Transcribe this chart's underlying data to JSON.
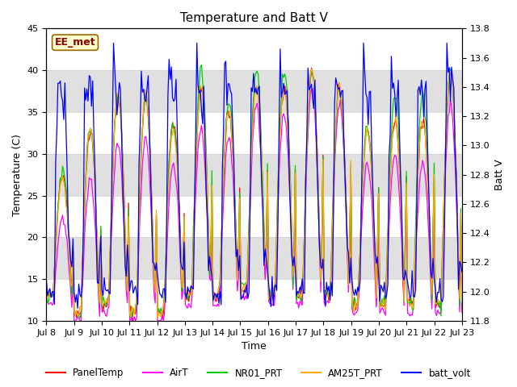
{
  "title": "Temperature and Batt V",
  "xlabel": "Time",
  "ylabel_left": "Temperature (C)",
  "ylabel_right": "Batt V",
  "ylim_left": [
    10,
    45
  ],
  "ylim_right": [
    11.8,
    13.8
  ],
  "x_tick_labels": [
    "Jul 8",
    "Jul 9",
    "Jul 10",
    "Jul 11",
    "Jul 12",
    "Jul 13",
    "Jul 14",
    "Jul 15",
    "Jul 16",
    "Jul 17",
    "Jul 18",
    "Jul 19",
    "Jul 20",
    "Jul 21",
    "Jul 22",
    "Jul 23"
  ],
  "annotation_text": "EE_met",
  "series_colors": {
    "PanelTemp": "#ff0000",
    "AirT": "#ff00ff",
    "NR01_PRT": "#00cc00",
    "AM25T_PRT": "#ffaa00",
    "batt_volt": "#0000ff"
  },
  "band_color": "#e0e0e0",
  "background_color": "#ffffff",
  "title_fontsize": 11,
  "axis_fontsize": 9,
  "tick_fontsize": 8
}
